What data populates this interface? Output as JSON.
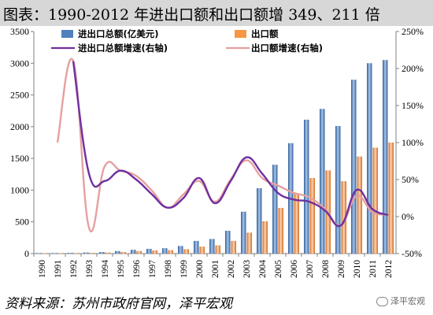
{
  "header": {
    "title": "图表：1990-2012 年进出口额和出口额增 349、211 倍"
  },
  "footer": {
    "source": "资料来源：苏州市政府官网，泽平宏观",
    "watermark": "泽平宏观"
  },
  "chart_data": {
    "type": "bar",
    "categories": [
      "1990",
      "1991",
      "1992",
      "1993",
      "1994",
      "1995",
      "1996",
      "1997",
      "1998",
      "1999",
      "2000",
      "2001",
      "2002",
      "2003",
      "2004",
      "2005",
      "2006",
      "2007",
      "2008",
      "2009",
      "2010",
      "2011",
      "2012"
    ],
    "series": [
      {
        "name": "进出口总额(亿美元)",
        "type": "bar",
        "axis": "left",
        "color": "#4f81bd",
        "values": [
          8.7,
          10,
          12,
          17,
          24,
          40,
          60,
          75,
          85,
          120,
          200,
          230,
          360,
          660,
          1030,
          1400,
          1740,
          2110,
          2280,
          2010,
          2740,
          3000,
          3050
        ]
      },
      {
        "name": "出口额",
        "type": "bar",
        "axis": "left",
        "color": "#f79646",
        "values": [
          8.3,
          9,
          10,
          12,
          17,
          25,
          40,
          50,
          55,
          70,
          110,
          130,
          200,
          330,
          510,
          720,
          950,
          1190,
          1310,
          1140,
          1530,
          1670,
          1750
        ]
      },
      {
        "name": "进出口总额增速(右轴)",
        "type": "line",
        "axis": "right",
        "color": "#7030a0",
        "values": [
          null,
          null,
          210,
          58,
          48,
          62,
          50,
          30,
          12,
          25,
          52,
          18,
          48,
          80,
          58,
          32,
          23,
          20,
          8,
          -12,
          36,
          10,
          2
        ]
      },
      {
        "name": "出口额增速(右轴)",
        "type": "line",
        "axis": "right",
        "color": "#e6a0a0",
        "values": [
          null,
          100,
          210,
          -15,
          68,
          62,
          55,
          35,
          12,
          30,
          48,
          20,
          50,
          76,
          52,
          42,
          32,
          26,
          10,
          -12,
          28,
          6,
          3
        ]
      }
    ],
    "y_left": {
      "ylim": [
        0,
        3500
      ],
      "ticks": [
        "0",
        "500",
        "1000",
        "1500",
        "2000",
        "2500",
        "3000",
        "3500"
      ]
    },
    "y_right": {
      "ylim": [
        -50,
        250
      ],
      "ticks": [
        "-50%",
        "0%",
        "50%",
        "100%",
        "150%",
        "200%",
        "250%"
      ]
    },
    "legend": "top-left, two rows",
    "grid": false
  }
}
